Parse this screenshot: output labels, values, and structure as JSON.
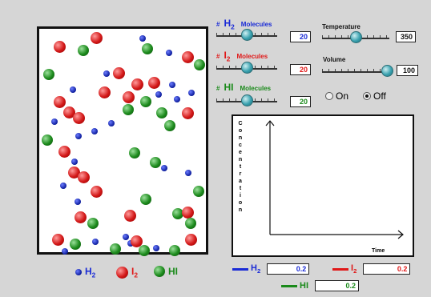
{
  "controls": {
    "h2": {
      "hash": "#",
      "symbol": "H2",
      "label": "Molecules",
      "value": "20",
      "level": 0.5,
      "color": "#1a2bd6"
    },
    "i2": {
      "hash": "#",
      "symbol": "I2",
      "label": "Molecules",
      "value": "20",
      "level": 0.5,
      "color": "#e01818"
    },
    "hi": {
      "hash": "#",
      "symbol": "HI",
      "label": "Molecules",
      "value": "20",
      "level": 0.5,
      "color": "#1a8a1a"
    },
    "temperature": {
      "label": "Temperature",
      "value": "350",
      "level": 0.5
    },
    "volume": {
      "label": "Volume",
      "value": "100",
      "level": 1.0
    },
    "radio_on": "On",
    "radio_off": "Off",
    "selected": "Off"
  },
  "legend": {
    "h2": "H2",
    "i2": "I2",
    "hi": "HI"
  },
  "graph": {
    "ylabel": "Concentration",
    "xlabel": "Time"
  },
  "concentrations": {
    "h2": {
      "label": "H2",
      "value": "0.2"
    },
    "i2": {
      "label": "I2",
      "value": "0.2"
    },
    "hi": {
      "label": "HI",
      "value": "0.2"
    }
  },
  "colors": {
    "h2": "#1a2bd6",
    "i2": "#e01818",
    "hi": "#1a8a1a",
    "knob": "#3aa2b0"
  }
}
